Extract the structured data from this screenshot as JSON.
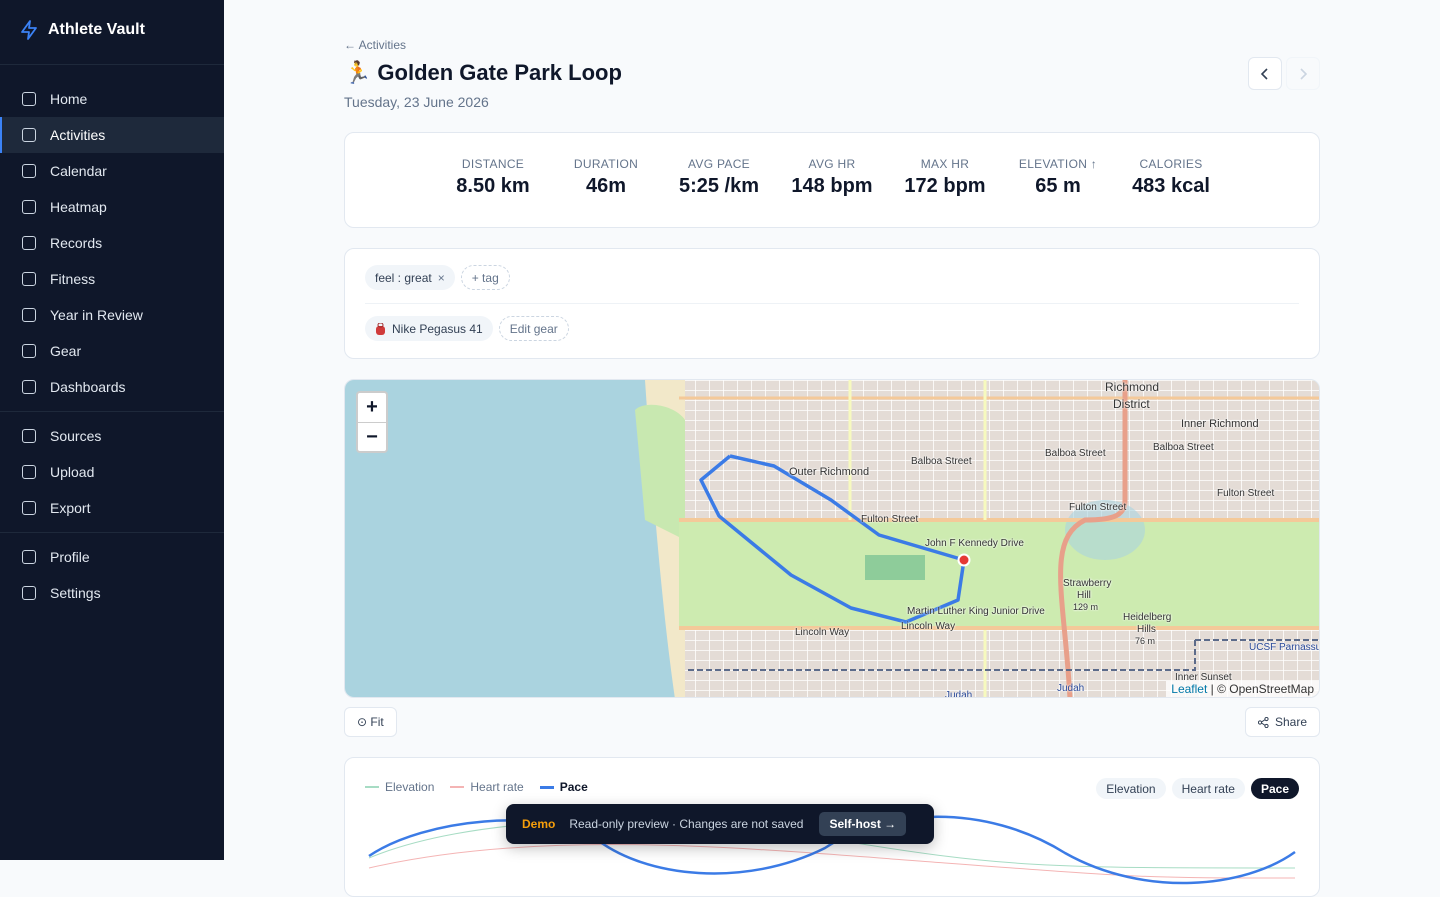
{
  "sidebar": {
    "brand": "Athlete Vault",
    "nav_groups": [
      [
        {
          "label": "Home"
        },
        {
          "label": "Activities",
          "active": true
        },
        {
          "label": "Calendar"
        },
        {
          "label": "Heatmap"
        },
        {
          "label": "Records"
        },
        {
          "label": "Fitness"
        },
        {
          "label": "Year in Review"
        },
        {
          "label": "Gear"
        },
        {
          "label": "Dashboards"
        }
      ],
      [
        {
          "label": "Sources"
        },
        {
          "label": "Upload"
        },
        {
          "label": "Export"
        }
      ],
      [
        {
          "label": "Profile"
        },
        {
          "label": "Settings"
        }
      ]
    ]
  },
  "header": {
    "back": "← Activities",
    "emoji": "🏃",
    "title": "Golden Gate Park Loop",
    "date": "Tuesday, 23 June 2026"
  },
  "stats": [
    {
      "label": "DISTANCE",
      "value": "8.50 km"
    },
    {
      "label": "DURATION",
      "value": "46m"
    },
    {
      "label": "AVG PACE",
      "value": "5:25 /km"
    },
    {
      "label": "AVG HR",
      "value": "148 bpm"
    },
    {
      "label": "MAX HR",
      "value": "172 bpm"
    },
    {
      "label": "ELEVATION ↑",
      "value": "65 m"
    },
    {
      "label": "CALORIES",
      "value": "483 kcal"
    }
  ],
  "tags": {
    "items": [
      {
        "text": "feel : great",
        "remove": "×"
      }
    ],
    "add": "+ tag"
  },
  "gear": {
    "name": "Nike Pegasus 41",
    "edit": "Edit gear"
  },
  "map": {
    "zoom_in": "+",
    "zoom_out": "−",
    "labels": [
      "Richmond",
      "District",
      "Inner Richmond",
      "Outer Richmond",
      "Balboa Street",
      "Balboa Street",
      "Balboa Street",
      "Fulton Street",
      "Fulton Street",
      "Fulton Street",
      "John F Kennedy Drive",
      "Martin Luther King Junior Drive",
      "Lincoln Way",
      "Lincoln Way",
      "Strawberry",
      "Hill",
      "129 m",
      "Heidelberg",
      "Hills",
      "76 m",
      "UCSF Parnassus",
      "Inner Sunset",
      "Judah",
      "Judah"
    ],
    "attribution": {
      "leaflet": "Leaflet",
      "rest": "| © OpenStreetMap"
    }
  },
  "map_actions": {
    "fit": "⊙ Fit",
    "share": "Share"
  },
  "chart": {
    "series": [
      {
        "name": "Elevation",
        "color": "#a7dcc4"
      },
      {
        "name": "Heart rate",
        "color": "#f4b4b4"
      },
      {
        "name": "Pace",
        "color": "#3b7be6",
        "active": true
      }
    ]
  },
  "demo": {
    "badge": "Demo",
    "text": "Read-only preview · Changes are not saved",
    "action": "Self-host →"
  }
}
